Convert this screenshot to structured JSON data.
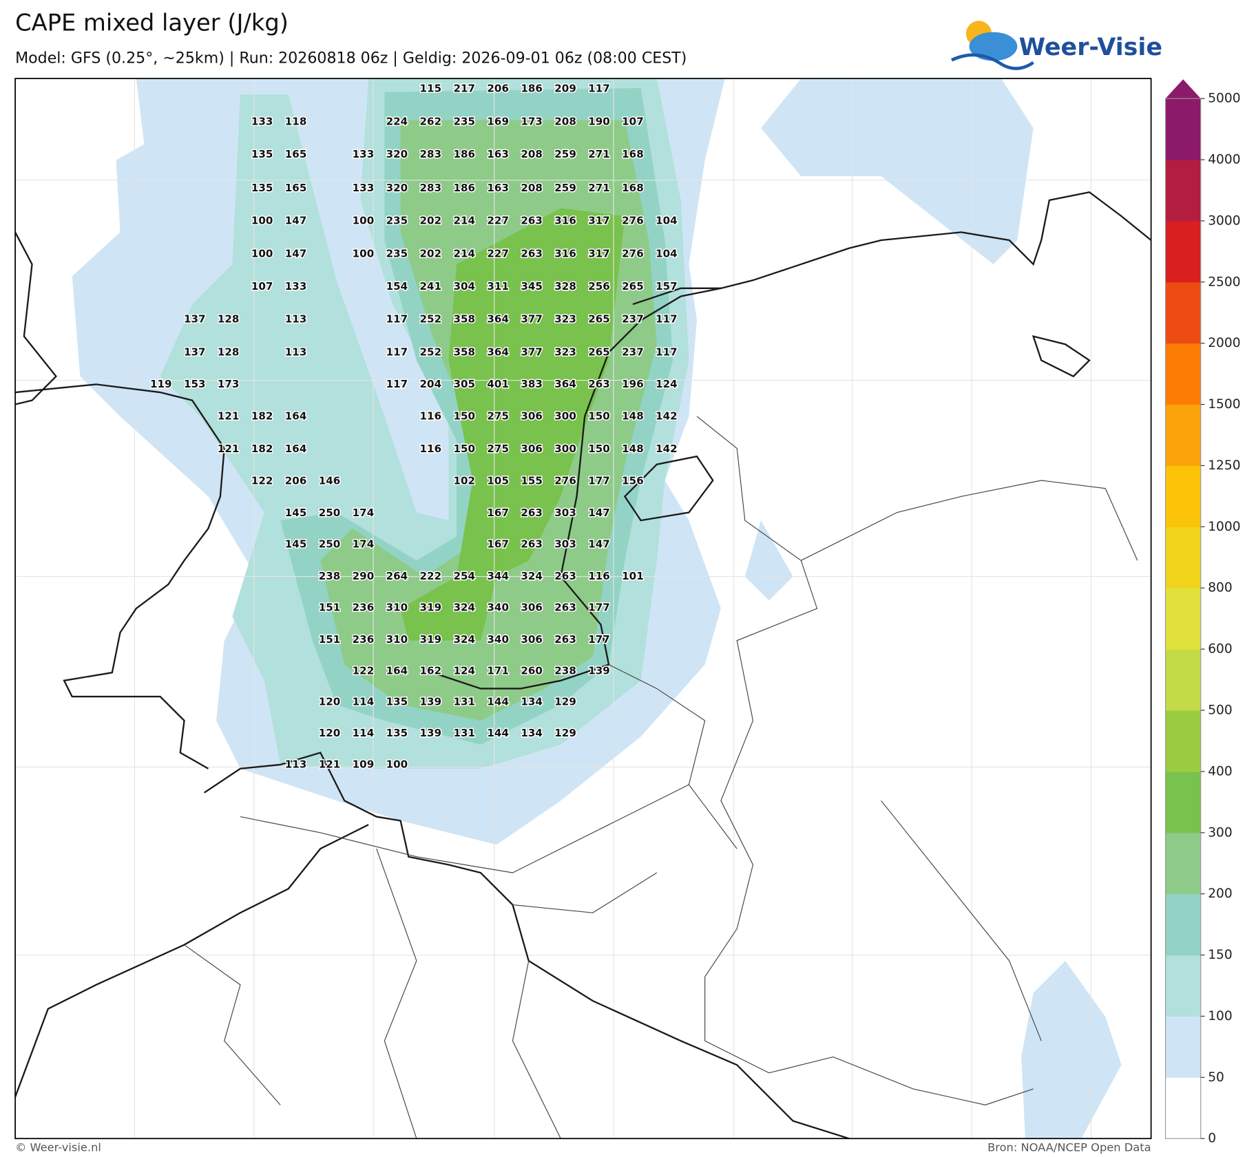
{
  "header": {
    "title": "CAPE mixed layer (J/kg)",
    "subtitle": "Model: GFS (0.25°, ~25km)  |  Run: 20260818 06z  |  Geldig: 2026-09-01 06z (08:00 CEST)",
    "logo": "Weer-Visie"
  },
  "map": {
    "grid": [
      [
        null,
        null,
        null,
        null,
        null,
        null,
        null,
        null,
        115,
        217,
        206,
        186,
        209,
        117,
        null,
        null
      ],
      [
        null,
        null,
        null,
        133,
        118,
        null,
        null,
        224,
        262,
        235,
        169,
        173,
        208,
        190,
        107,
        null
      ],
      [
        null,
        null,
        null,
        135,
        165,
        null,
        133,
        320,
        283,
        186,
        163,
        208,
        259,
        271,
        168,
        null
      ],
      [
        null,
        null,
        null,
        135,
        165,
        null,
        133,
        320,
        283,
        186,
        163,
        208,
        259,
        271,
        168,
        null
      ],
      [
        null,
        null,
        null,
        100,
        147,
        null,
        100,
        235,
        202,
        214,
        227,
        263,
        316,
        317,
        276,
        104
      ],
      [
        null,
        null,
        null,
        100,
        147,
        null,
        100,
        235,
        202,
        214,
        227,
        263,
        316,
        317,
        276,
        104
      ],
      [
        null,
        null,
        null,
        107,
        133,
        null,
        null,
        154,
        241,
        304,
        311,
        345,
        328,
        256,
        265,
        157
      ],
      [
        null,
        137,
        128,
        null,
        113,
        null,
        null,
        117,
        252,
        358,
        364,
        377,
        323,
        265,
        237,
        117
      ],
      [
        null,
        137,
        128,
        null,
        113,
        null,
        null,
        117,
        252,
        358,
        364,
        377,
        323,
        265,
        237,
        117
      ],
      [
        119,
        153,
        173,
        null,
        null,
        null,
        null,
        117,
        204,
        305,
        401,
        383,
        364,
        263,
        196,
        124
      ],
      [
        null,
        null,
        121,
        182,
        164,
        null,
        null,
        null,
        116,
        150,
        275,
        306,
        300,
        150,
        148,
        142
      ],
      [
        null,
        null,
        121,
        182,
        164,
        null,
        null,
        null,
        116,
        150,
        275,
        306,
        300,
        150,
        148,
        142
      ],
      [
        null,
        null,
        null,
        122,
        206,
        146,
        null,
        null,
        null,
        102,
        105,
        155,
        276,
        177,
        156,
        null
      ],
      [
        null,
        null,
        null,
        null,
        145,
        250,
        174,
        null,
        null,
        null,
        167,
        263,
        303,
        147,
        null,
        null
      ],
      [
        null,
        null,
        null,
        null,
        145,
        250,
        174,
        null,
        null,
        null,
        167,
        263,
        303,
        147,
        null,
        null
      ],
      [
        null,
        null,
        null,
        null,
        null,
        238,
        290,
        264,
        222,
        254,
        344,
        324,
        263,
        116,
        101,
        null
      ],
      [
        null,
        null,
        null,
        null,
        null,
        151,
        236,
        310,
        319,
        324,
        340,
        306,
        263,
        177,
        null,
        null
      ],
      [
        null,
        null,
        null,
        null,
        null,
        151,
        236,
        310,
        319,
        324,
        340,
        306,
        263,
        177,
        null,
        null
      ],
      [
        null,
        null,
        null,
        null,
        null,
        null,
        122,
        164,
        162,
        124,
        171,
        260,
        238,
        139,
        null,
        null
      ],
      [
        null,
        null,
        null,
        null,
        null,
        120,
        114,
        135,
        139,
        131,
        144,
        134,
        129,
        null,
        null,
        null
      ],
      [
        null,
        null,
        null,
        null,
        null,
        120,
        114,
        135,
        139,
        131,
        144,
        134,
        129,
        null,
        null,
        null
      ],
      [
        null,
        null,
        null,
        null,
        113,
        121,
        109,
        100,
        null,
        null,
        null,
        null,
        null,
        null,
        null,
        null
      ]
    ]
  },
  "colorbar": {
    "levels": [
      0,
      50,
      100,
      150,
      200,
      300,
      400,
      500,
      600,
      800,
      1000,
      1250,
      1500,
      2000,
      2500,
      3000,
      4000,
      5000
    ],
    "colors": [
      "#ffffff",
      "#cfe5f5",
      "#b2e0dc",
      "#93d3c5",
      "#8ecb88",
      "#79c24d",
      "#9bcd43",
      "#c3db47",
      "#e1e13b",
      "#f2d41d",
      "#fbc409",
      "#fca30c",
      "#fb7d05",
      "#ec4c13",
      "#da1f1f",
      "#b31d3f",
      "#8c1a6a"
    ]
  },
  "footer": {
    "left": "© Weer-visie.nl",
    "right": "Bron: NOAA/NCEP Open Data"
  }
}
